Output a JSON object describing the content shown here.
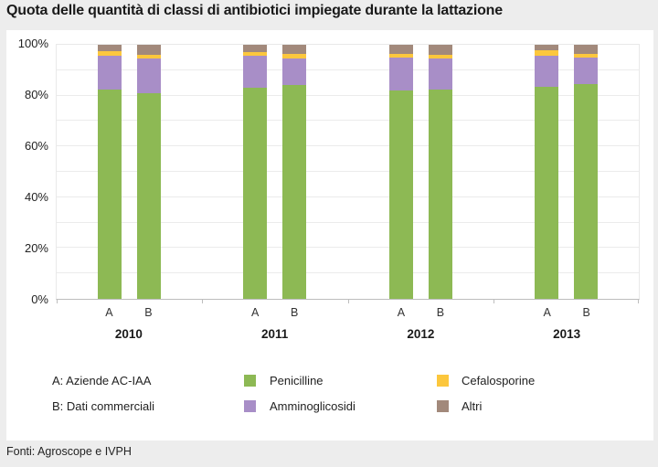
{
  "title": "Quota delle quantità di classi di antibiotici impiegate durante la lattazione",
  "footer": {
    "source": "Fonti: Agroscope e IVPH"
  },
  "legend": {
    "keys": [
      {
        "id": "A",
        "label": "A: Aziende AC-IAA"
      },
      {
        "id": "B",
        "label": "B: Dati commerciali"
      }
    ]
  },
  "colors": {
    "penicilline": "#8db954",
    "amminoglicosidi": "#a88ec7",
    "cefalosporine": "#fcc73d",
    "altri": "#a2897b",
    "grid": "#ebebeb",
    "axis": "#bdbdbd"
  },
  "chart_data": {
    "type": "bar",
    "subtype": "stacked-percent",
    "title": "Quota delle quantità di classi di antibiotici impiegate durante la lattazione",
    "categories": [
      "2010 A",
      "2010 B",
      "2011 A",
      "2011 B",
      "2012 A",
      "2012 B",
      "2013 A",
      "2013 B"
    ],
    "group_years": [
      "2010",
      "2011",
      "2012",
      "2013"
    ],
    "bar_sublabels": [
      "A",
      "B"
    ],
    "series": [
      {
        "name": "Penicilline",
        "color": "#8db954",
        "values": [
          82.5,
          81,
          83,
          84,
          82,
          82.5,
          83.5,
          84.5
        ]
      },
      {
        "name": "Amminoglicosidi",
        "color": "#a88ec7",
        "values": [
          13,
          13.5,
          12.5,
          10.5,
          13,
          12,
          12,
          10.5
        ]
      },
      {
        "name": "Cefalosporine",
        "color": "#fcc73d",
        "values": [
          2,
          1.5,
          1.5,
          2,
          1.5,
          1.5,
          2.5,
          1.5
        ]
      },
      {
        "name": "Altri",
        "color": "#a2897b",
        "values": [
          2.5,
          4,
          3,
          3.5,
          3.5,
          4,
          2,
          3.5
        ]
      }
    ],
    "stack_order_bottom_to_top": [
      "Penicilline",
      "Amminoglicosidi",
      "Cefalosporine",
      "Altri"
    ],
    "xlabel": "",
    "ylabel": "",
    "ylim": [
      0,
      100
    ],
    "yticks": [
      0,
      20,
      40,
      60,
      80,
      100
    ],
    "ytick_labels": [
      "0%",
      "20%",
      "40%",
      "60%",
      "80%",
      "100%"
    ],
    "grid_step": 10,
    "legend_position": "bottom"
  }
}
